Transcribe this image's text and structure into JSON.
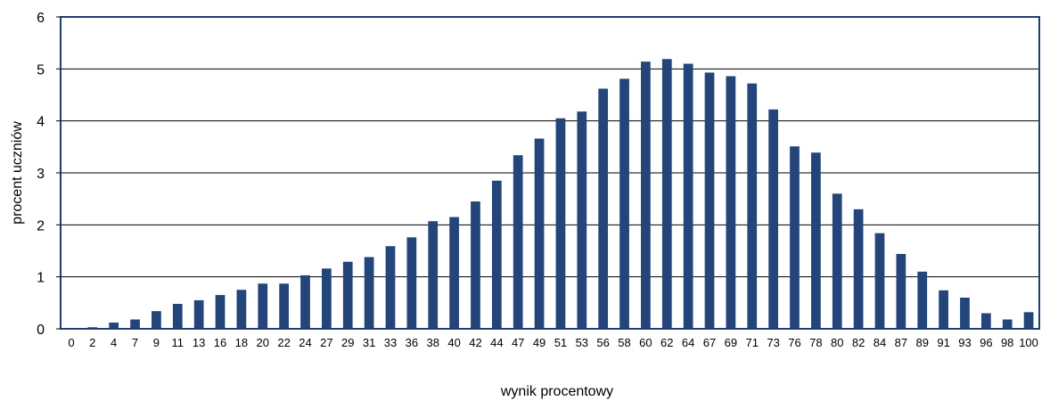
{
  "chart_data": {
    "type": "bar",
    "title": "",
    "xlabel": "wynik procentowy",
    "ylabel": "procent uczniów",
    "ylim": [
      0,
      6
    ],
    "yticks": [
      0,
      1,
      2,
      3,
      4,
      5,
      6
    ],
    "grid": true,
    "bar_color": "#24457A",
    "frame_color": "#1F3F73",
    "categories": [
      "0",
      "2",
      "4",
      "7",
      "9",
      "11",
      "13",
      "16",
      "18",
      "20",
      "22",
      "24",
      "27",
      "29",
      "31",
      "33",
      "36",
      "38",
      "40",
      "42",
      "44",
      "47",
      "49",
      "51",
      "53",
      "56",
      "58",
      "60",
      "62",
      "64",
      "67",
      "69",
      "71",
      "73",
      "76",
      "78",
      "80",
      "82",
      "84",
      "87",
      "89",
      "91",
      "93",
      "96",
      "98",
      "100"
    ],
    "values": [
      0.0,
      0.03,
      0.12,
      0.18,
      0.34,
      0.48,
      0.55,
      0.65,
      0.75,
      0.87,
      0.87,
      1.03,
      1.16,
      1.29,
      1.38,
      1.59,
      1.76,
      2.07,
      2.15,
      2.45,
      2.85,
      3.34,
      3.66,
      4.05,
      4.18,
      4.62,
      4.81,
      5.14,
      5.19,
      5.1,
      4.93,
      4.86,
      4.72,
      4.22,
      3.51,
      3.39,
      2.6,
      2.3,
      1.84,
      1.44,
      1.1,
      0.74,
      0.6,
      0.3,
      0.18,
      0.32
    ]
  }
}
